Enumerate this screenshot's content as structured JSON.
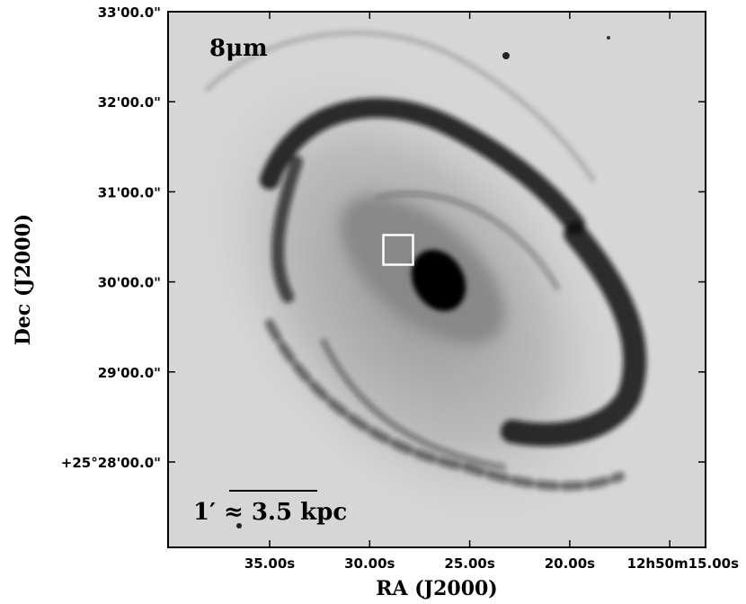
{
  "figure": {
    "band": "8μm",
    "scale_label": "1′ ≈ 3.5 kpc",
    "xlabel": "RA (J2000)",
    "ylabel": "Dec (J2000)",
    "xticks": [
      "35.00s",
      "30.00s",
      "25.00s",
      "20.00s",
      "12h50m15.00s"
    ],
    "yticks": [
      "33'00.0\"",
      "32'00.0\"",
      "31'00.0\"",
      "30'00.0\"",
      "29'00.0\"",
      "+25°28'00.0\""
    ]
  }
}
